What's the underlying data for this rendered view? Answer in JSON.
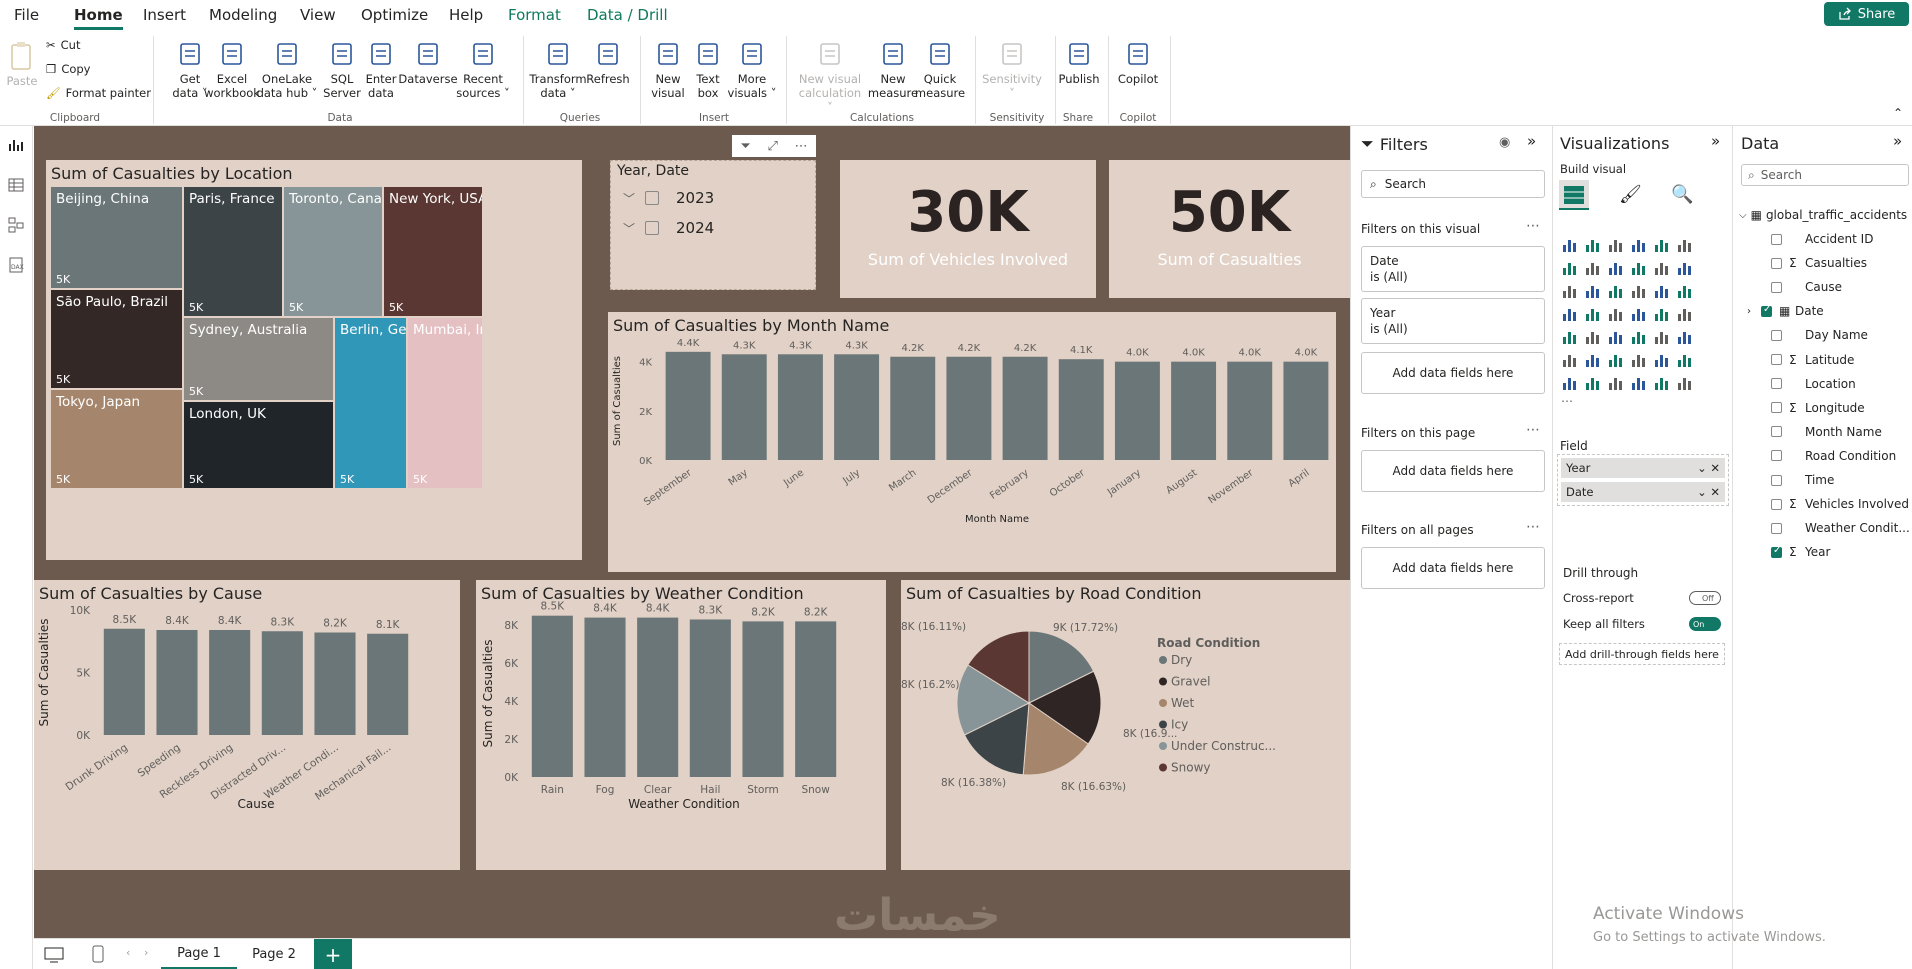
{
  "menu": {
    "items": [
      "File",
      "Home",
      "Insert",
      "Modeling",
      "View",
      "Optimize",
      "Help",
      "Format",
      "Data / Drill"
    ],
    "share": "Share"
  },
  "ribbon": {
    "clipboard": {
      "paste": "Paste",
      "cut": "Cut",
      "copy": "Copy",
      "format_painter": "Format painter",
      "group": "Clipboard"
    },
    "data_group": "Data",
    "buttons": [
      {
        "l1": "Get",
        "l2": "data ˅"
      },
      {
        "l1": "Excel",
        "l2": "workbook"
      },
      {
        "l1": "OneLake",
        "l2": "data hub ˅"
      },
      {
        "l1": "SQL",
        "l2": "Server"
      },
      {
        "l1": "Enter",
        "l2": "data"
      },
      {
        "l1": "Dataverse",
        "l2": ""
      },
      {
        "l1": "Recent",
        "l2": "sources ˅"
      },
      {
        "l1": "Transform",
        "l2": "data ˅"
      },
      {
        "l1": "Refresh",
        "l2": ""
      },
      {
        "l1": "New",
        "l2": "visual"
      },
      {
        "l1": "Text",
        "l2": "box"
      },
      {
        "l1": "More",
        "l2": "visuals ˅"
      },
      {
        "l1": "New visual",
        "l2": "calculation ˅"
      },
      {
        "l1": "New",
        "l2": "measure"
      },
      {
        "l1": "Quick",
        "l2": "measure"
      },
      {
        "l1": "Sensitivity",
        "l2": "˅"
      },
      {
        "l1": "Publish",
        "l2": ""
      },
      {
        "l1": "Copilot",
        "l2": ""
      }
    ],
    "groups": [
      "Queries",
      "Insert",
      "Calculations",
      "Sensitivity",
      "Share",
      "Copilot"
    ]
  },
  "report": {
    "treemap": {
      "title": "Sum of Casualties by Location",
      "tiles": [
        {
          "name": "Beijing, China",
          "value": "5K",
          "color": "#6b7678"
        },
        {
          "name": "São Paulo, Brazil",
          "value": "5K",
          "color": "#332826"
        },
        {
          "name": "Tokyo, Japan",
          "value": "5K",
          "color": "#a5866c"
        },
        {
          "name": "Paris, France",
          "value": "5K",
          "color": "#3c4448"
        },
        {
          "name": "Sydney, Australia",
          "value": "5K",
          "color": "#8d8985"
        },
        {
          "name": "London, UK",
          "value": "5K",
          "color": "#1f2528"
        },
        {
          "name": "Toronto, Canada",
          "value": "5K",
          "color": "#879599"
        },
        {
          "name": "Berlin, Ger...",
          "value": "5K",
          "color": "#3097b9"
        },
        {
          "name": "New York, USA",
          "value": "5K",
          "color": "#5a3732"
        },
        {
          "name": "Mumbai, In...",
          "value": "5K",
          "color": "#e4c0c3"
        }
      ]
    },
    "slicer": {
      "title": "Year, Date",
      "items": [
        "2023",
        "2024"
      ]
    },
    "kpi1": {
      "value": "30K",
      "label": "Sum of Vehicles Involved"
    },
    "kpi2": {
      "value": "50K",
      "label": "Sum of Casualties"
    },
    "month_chart_title": "Sum of Casualties by Month Name",
    "cause_chart_title": "Sum of Casualties by Cause",
    "weather_chart_title": "Sum of Casualties by Weather Condition",
    "road_chart_title": "Sum of Casualties by Road Condition",
    "watermark": "خمسات"
  },
  "chart_data": [
    {
      "type": "bar",
      "title": "Sum of Casualties by Month Name",
      "xlabel": "Month Name",
      "ylabel": "Sum of Casualties",
      "categories": [
        "September",
        "May",
        "June",
        "July",
        "March",
        "December",
        "February",
        "October",
        "January",
        "August",
        "November",
        "April"
      ],
      "values": [
        4400,
        4300,
        4300,
        4300,
        4200,
        4200,
        4200,
        4100,
        4000,
        4000,
        4000,
        4000
      ],
      "data_labels": [
        "4.4K",
        "4.3K",
        "4.3K",
        "4.3K",
        "4.2K",
        "4.2K",
        "4.2K",
        "4.1K",
        "4.0K",
        "4.0K",
        "4.0K",
        "4.0K"
      ],
      "yticks": [
        "0K",
        "2K",
        "4K"
      ],
      "ylim": [
        0,
        4800
      ],
      "color": "#6b7678"
    },
    {
      "type": "bar",
      "title": "Sum of Casualties by Cause",
      "xlabel": "Cause",
      "ylabel": "Sum of Casualties",
      "categories": [
        "Drunk Driving",
        "Speeding",
        "Reckless Driving",
        "Distracted Driv...",
        "Weather Condi...",
        "Mechanical Fail..."
      ],
      "values": [
        8500,
        8400,
        8400,
        8300,
        8200,
        8100
      ],
      "data_labels": [
        "8.5K",
        "8.4K",
        "8.4K",
        "8.3K",
        "8.2K",
        "8.1K"
      ],
      "yticks": [
        "0K",
        "5K",
        "10K"
      ],
      "ylim": [
        0,
        10000
      ],
      "color": "#6b7678"
    },
    {
      "type": "bar",
      "title": "Sum of Casualties by Weather Condition",
      "xlabel": "Weather Condition",
      "ylabel": "Sum of Casualties",
      "categories": [
        "Rain",
        "Fog",
        "Clear",
        "Hail",
        "Storm",
        "Snow"
      ],
      "values": [
        8500,
        8400,
        8400,
        8300,
        8200,
        8200
      ],
      "data_labels": [
        "8.5K",
        "8.4K",
        "8.4K",
        "8.3K",
        "8.2K",
        "8.2K"
      ],
      "yticks": [
        "0K",
        "2K",
        "4K",
        "6K",
        "8K"
      ],
      "ylim": [
        0,
        8800
      ],
      "color": "#6b7678"
    },
    {
      "type": "pie",
      "title": "Sum of Casualties by Road Condition",
      "legend_title": "Road Condition",
      "legend_position": "right",
      "slices": [
        {
          "name": "Dry",
          "value": 17.72,
          "label": "9K (17.72%)",
          "color": "#6b7678"
        },
        {
          "name": "Gravel",
          "value": 16.9,
          "label": "8K (16.9...",
          "color": "#2e2524"
        },
        {
          "name": "Wet",
          "value": 16.63,
          "label": "8K (16.63%)",
          "color": "#a5866c"
        },
        {
          "name": "Icy",
          "value": 16.38,
          "label": "8K (16.38%)",
          "color": "#3c4448"
        },
        {
          "name": "Under Construc...",
          "value": 16.2,
          "label": "8K (16.2%)",
          "color": "#879599"
        },
        {
          "name": "Snowy",
          "value": 16.11,
          "label": "8K (16.11%)",
          "color": "#5a3732"
        }
      ]
    }
  ],
  "filters": {
    "title": "Filters",
    "search": "Search",
    "on_visual": "Filters on this visual",
    "date_filter": {
      "name": "Date",
      "state": "is (All)"
    },
    "year_filter": {
      "name": "Year",
      "state": "is (All)"
    },
    "add": "Add data fields here",
    "on_page": "Filters on this page",
    "on_all": "Filters on all pages"
  },
  "viz": {
    "title": "Visualizations",
    "build": "Build visual",
    "field_label": "Field",
    "fields": [
      "Year",
      "Date"
    ],
    "drill_through": "Drill through",
    "cross_report": "Cross-report",
    "cross_state": "Off",
    "keep_filters": "Keep all filters",
    "keep_state": "On",
    "add_drill": "Add drill-through fields here"
  },
  "data": {
    "title": "Data",
    "search": "Search",
    "table": "global_traffic_accidents",
    "fields": [
      {
        "name": "Accident ID",
        "sigma": false,
        "checked": false
      },
      {
        "name": "Casualties",
        "sigma": true,
        "checked": false
      },
      {
        "name": "Cause",
        "sigma": false,
        "checked": false
      },
      {
        "name": "Date",
        "sigma": false,
        "checked": true,
        "cal": true
      },
      {
        "name": "Day Name",
        "sigma": false,
        "checked": false
      },
      {
        "name": "Latitude",
        "sigma": true,
        "checked": false
      },
      {
        "name": "Location",
        "sigma": false,
        "checked": false
      },
      {
        "name": "Longitude",
        "sigma": true,
        "checked": false
      },
      {
        "name": "Month Name",
        "sigma": false,
        "checked": false
      },
      {
        "name": "Road Condition",
        "sigma": false,
        "checked": false
      },
      {
        "name": "Time",
        "sigma": false,
        "checked": false
      },
      {
        "name": "Vehicles Involved",
        "sigma": true,
        "checked": false
      },
      {
        "name": "Weather Condit...",
        "sigma": false,
        "checked": false
      },
      {
        "name": "Year",
        "sigma": true,
        "checked": true
      }
    ]
  },
  "pages": [
    "Page 1",
    "Page 2"
  ],
  "activate": {
    "line1": "Activate Windows",
    "line2": "Go to Settings to activate Windows."
  }
}
